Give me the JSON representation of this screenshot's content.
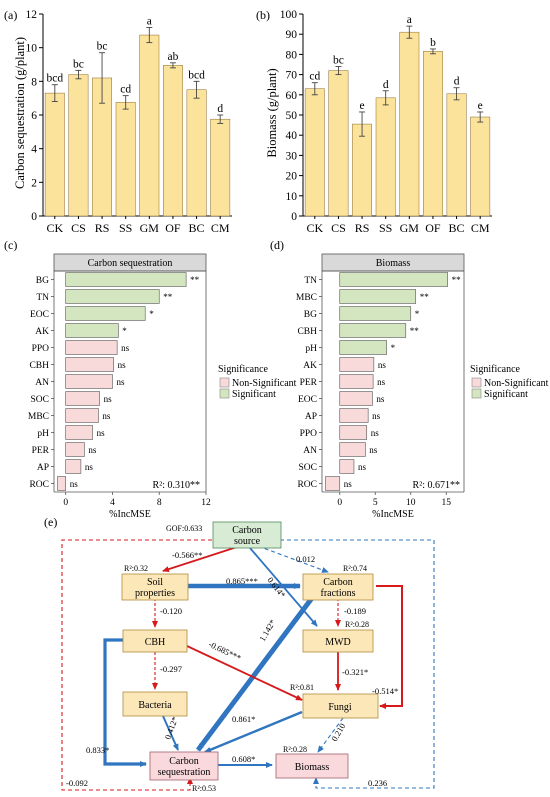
{
  "colors": {
    "bar_fill": "#FCE39C",
    "bar_stroke": "#8A6A2A",
    "sig_fill": "#D3E6C0",
    "nonsig_fill": "#F9DADB",
    "node_fill": "#FCE7B8",
    "node_stroke": "#B08A3A",
    "src_fill": "#D7EBD5",
    "src_stroke": "#4F8A5A",
    "pink_fill": "#F9D9DC",
    "red": "#D7191C",
    "blue": "#2F75C0",
    "header_fill": "#D9D9D9"
  },
  "chart_data": [
    {
      "panel": "(a)",
      "type": "bar",
      "ylabel": "Carbon sequestration (g/plant)",
      "categories": [
        "CK",
        "CS",
        "RS",
        "SS",
        "GM",
        "OF",
        "BC",
        "CM"
      ],
      "values": [
        7.3,
        8.4,
        8.2,
        6.75,
        10.75,
        8.95,
        7.5,
        5.75
      ],
      "errors": [
        0.5,
        0.25,
        1.5,
        0.4,
        0.45,
        0.15,
        0.5,
        0.25
      ],
      "letters": [
        "bcd",
        "bc",
        "bc",
        "cd",
        "a",
        "ab",
        "bcd",
        "d"
      ],
      "ylim": [
        0,
        12
      ],
      "yticks": [
        0,
        2,
        4,
        6,
        8,
        10,
        12
      ]
    },
    {
      "panel": "(b)",
      "type": "bar",
      "ylabel": "Biomass (g/plant)",
      "categories": [
        "CK",
        "CS",
        "RS",
        "SS",
        "GM",
        "OF",
        "BC",
        "CM"
      ],
      "values": [
        63,
        72,
        45.5,
        58.5,
        91,
        81.5,
        60.5,
        49
      ],
      "errors": [
        3,
        2,
        6,
        3.5,
        3,
        1.2,
        3,
        2.5
      ],
      "letters": [
        "cd",
        "bc",
        "e",
        "d",
        "a",
        "b",
        "d",
        "e"
      ],
      "ylim": [
        0,
        100
      ],
      "yticks": [
        0,
        10,
        20,
        30,
        40,
        50,
        60,
        70,
        80,
        90,
        100
      ]
    },
    {
      "panel": "(c)",
      "type": "bar",
      "orientation": "horizontal",
      "header": "Carbon sequestration",
      "xlabel": "%IncMSE",
      "xlim": [
        -1,
        12
      ],
      "xticks": [
        0,
        4,
        8,
        12
      ],
      "r2": "R²: 0.310**",
      "categories": [
        "BG",
        "TN",
        "EOC",
        "AK",
        "PPO",
        "CBH",
        "AN",
        "SOC",
        "MBC",
        "pH",
        "PER",
        "AP",
        "ROC"
      ],
      "values": [
        10.3,
        8.0,
        6.8,
        4.5,
        4.4,
        4.1,
        4.0,
        2.9,
        2.8,
        2.3,
        1.6,
        1.3,
        -0.7
      ],
      "significance": [
        "**",
        "**",
        "*",
        "*",
        "ns",
        "ns",
        "ns",
        "ns",
        "ns",
        "ns",
        "ns",
        "ns",
        "ns"
      ],
      "significant": [
        true,
        true,
        true,
        true,
        false,
        false,
        false,
        false,
        false,
        false,
        false,
        false,
        false
      ],
      "legend": {
        "title": "Significance",
        "items": [
          "Non-Significant",
          "Significant"
        ]
      }
    },
    {
      "panel": "(d)",
      "type": "bar",
      "orientation": "horizontal",
      "header": "Biomass",
      "xlabel": "%IncMSE",
      "xlim": [
        -2.5,
        17.5
      ],
      "xticks": [
        0,
        5,
        10,
        15
      ],
      "r2": "R²: 0.671**",
      "categories": [
        "TN",
        "MBC",
        "BG",
        "CBH",
        "pH",
        "AK",
        "PER",
        "EOC",
        "AP",
        "PPO",
        "AN",
        "SOC",
        "ROC"
      ],
      "values": [
        15.2,
        10.7,
        10.0,
        9.3,
        6.6,
        4.8,
        4.7,
        4.6,
        4.0,
        3.8,
        3.6,
        2.0,
        -2.0
      ],
      "significance": [
        "**",
        "**",
        "*",
        "**",
        "*",
        "ns",
        "ns",
        "ns",
        "ns",
        "ns",
        "ns",
        "ns",
        "ns"
      ],
      "significant": [
        true,
        true,
        true,
        true,
        true,
        false,
        false,
        false,
        false,
        false,
        false,
        false,
        false
      ],
      "legend": {
        "title": "Significance",
        "items": [
          "Non-Significant",
          "Significant"
        ]
      }
    }
  ],
  "sem": {
    "panel": "(e)",
    "gof": "GOF:0.633",
    "nodes": [
      {
        "id": "carbon-source",
        "label": [
          "Carbon",
          "source"
        ],
        "r2": ""
      },
      {
        "id": "soil-properties",
        "label": [
          "Soil",
          "properties"
        ],
        "r2": "R²:0.32"
      },
      {
        "id": "carbon-fractions",
        "label": [
          "Carbon",
          "fractions"
        ],
        "r2": "R²:0.74"
      },
      {
        "id": "cbh",
        "label": [
          "CBH"
        ],
        "r2": ""
      },
      {
        "id": "mwd",
        "label": [
          "MWD"
        ],
        "r2": "R²:0.28"
      },
      {
        "id": "bacteria",
        "label": [
          "Bacteria"
        ],
        "r2": ""
      },
      {
        "id": "fungi",
        "label": [
          "Fungi"
        ],
        "r2": "R²:0.81"
      },
      {
        "id": "carbon-sequestration",
        "label": [
          "Carbon",
          "sequestration"
        ],
        "r2": "R²:0.53"
      },
      {
        "id": "biomass",
        "label": [
          "Biomass"
        ],
        "r2": "R²:0.28"
      }
    ],
    "paths": [
      {
        "from": "carbon-source",
        "to": "soil-properties",
        "coef": "-0.566**"
      },
      {
        "from": "carbon-source",
        "to": "carbon-fractions",
        "coef": "0.012"
      },
      {
        "from": "carbon-source",
        "to": "mwd",
        "coef": "0.614*"
      },
      {
        "from": "soil-properties",
        "to": "carbon-fractions",
        "coef": "0.865***"
      },
      {
        "from": "soil-properties",
        "to": "cbh",
        "coef": "-0.120"
      },
      {
        "from": "carbon-fractions",
        "to": "mwd",
        "coef": "-0.189"
      },
      {
        "from": "carbon-fractions",
        "to": "carbon-sequestration",
        "coef": "1.142*"
      },
      {
        "from": "carbon-fractions",
        "to": "fungi",
        "coef": "-0.514*"
      },
      {
        "from": "cbh",
        "to": "fungi",
        "coef": "-0.685***"
      },
      {
        "from": "cbh",
        "to": "bacteria",
        "coef": "-0.297"
      },
      {
        "from": "cbh",
        "to": "carbon-sequestration",
        "coef": "0.833*"
      },
      {
        "from": "mwd",
        "to": "fungi",
        "coef": "-0.321*"
      },
      {
        "from": "bacteria",
        "to": "carbon-sequestration",
        "coef": "0.412*"
      },
      {
        "from": "fungi",
        "to": "carbon-sequestration",
        "coef": "0.861*"
      },
      {
        "from": "fungi",
        "to": "biomass",
        "coef": "0.210"
      },
      {
        "from": "carbon-sequestration",
        "to": "biomass",
        "coef": "0.608*"
      },
      {
        "from": "carbon-source",
        "to": "carbon-sequestration",
        "coef": "-0.092"
      },
      {
        "from": "carbon-source",
        "to": "biomass",
        "coef": "0.236"
      }
    ]
  }
}
